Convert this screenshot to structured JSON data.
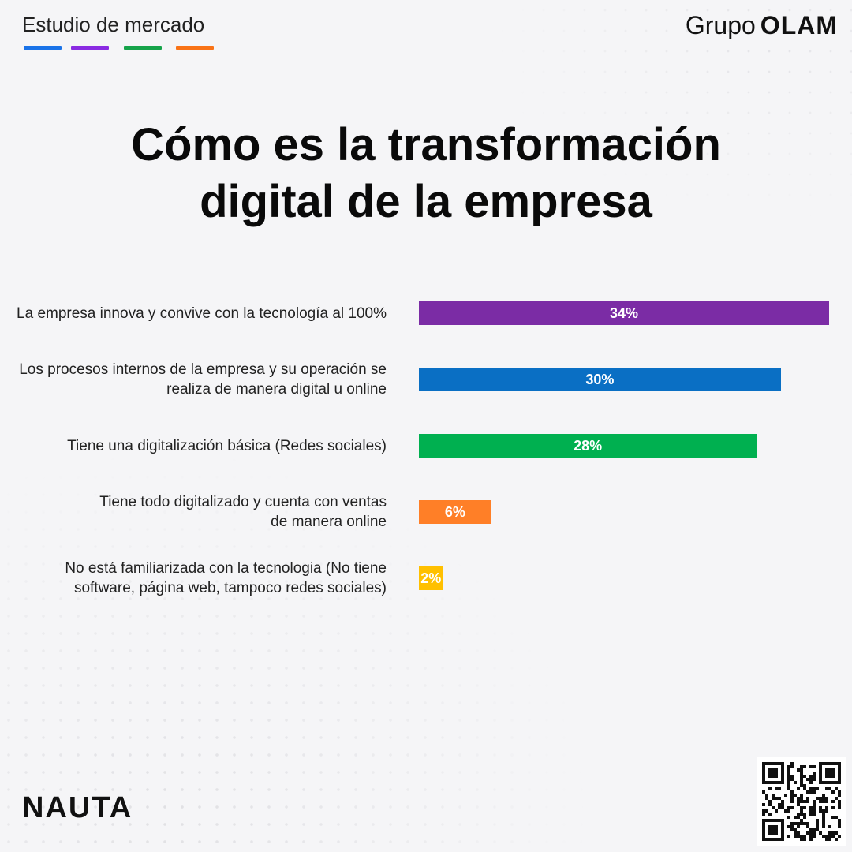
{
  "header": {
    "section_label": "Estudio de mercado",
    "stripe_colors": [
      "#1a73e8",
      "#8a2be2",
      "#16a34a",
      "#f97316"
    ],
    "brand_prefix": "Grupo",
    "brand_name": "OLAM"
  },
  "title": {
    "line1": "Cómo es la transformación",
    "line2": "digital de la empresa"
  },
  "chart_data": {
    "type": "bar",
    "orientation": "horizontal",
    "title": "Cómo es la transformación digital de la empresa",
    "categories": [
      [
        "La empresa innova y convive con la tecnología al 100%"
      ],
      [
        "Los procesos internos de la empresa y su operación se",
        "realiza de manera digital u online"
      ],
      [
        "Tiene una digitalización básica (Redes sociales)"
      ],
      [
        "Tiene todo digitalizado y cuenta con ventas",
        "de manera online"
      ],
      [
        "No está familiarizada con la tecnologia (No tiene",
        "software, página web, tampoco redes sociales)"
      ]
    ],
    "values": [
      34,
      30,
      28,
      6,
      2
    ],
    "value_labels": [
      "34%",
      "30%",
      "28%",
      "6%",
      "2%"
    ],
    "colors": [
      "#7b2ca5",
      "#0a6fc4",
      "#00b050",
      "#ff7f27",
      "#ffc000"
    ],
    "xlim": [
      0,
      34
    ],
    "grid": false,
    "legend": "none"
  },
  "footer": {
    "logo_text": "NAUTA",
    "qr": "qr-code"
  }
}
